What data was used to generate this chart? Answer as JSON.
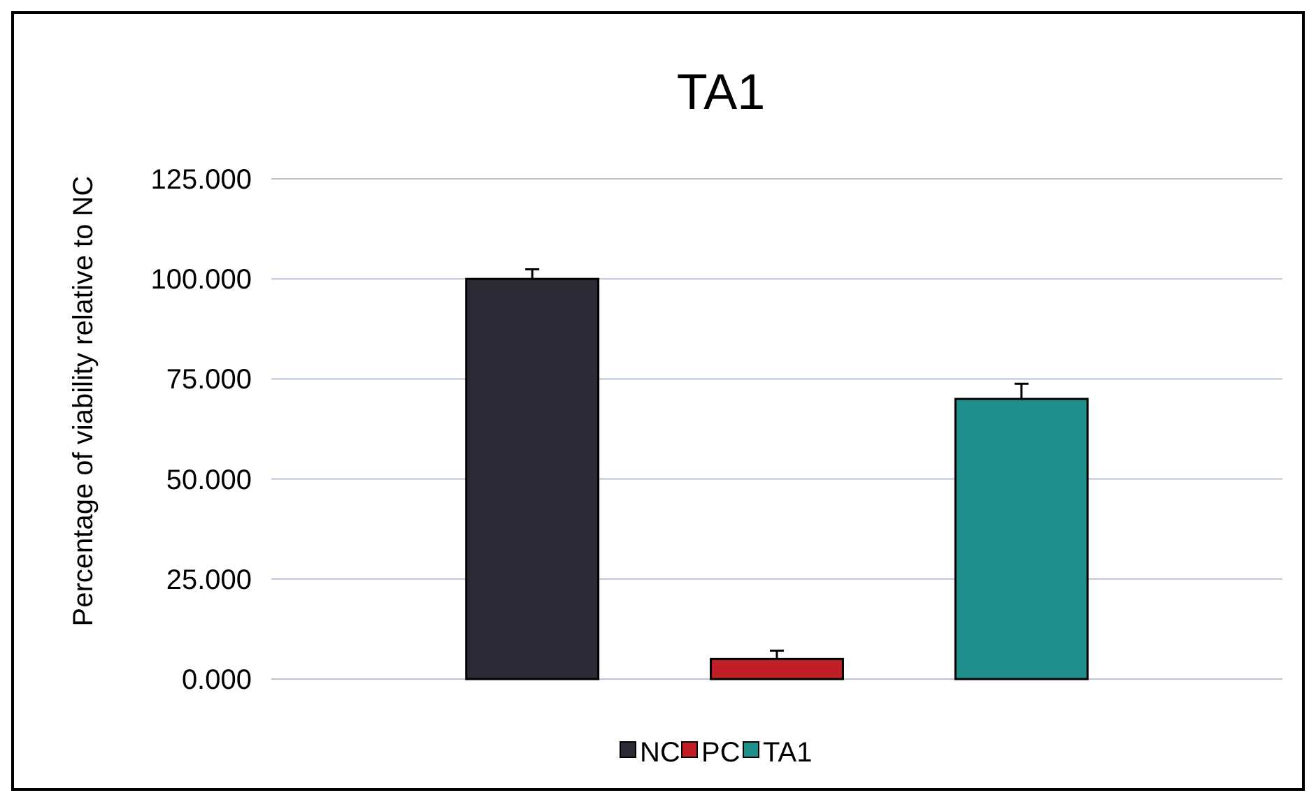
{
  "chart_data": {
    "type": "bar",
    "title": "TA1",
    "ylabel": "Percentage of viability relative to NC",
    "categories": [
      null
    ],
    "series": [
      {
        "name": "NC",
        "color": "#2b2a35",
        "values": [
          100
        ],
        "errors": [
          [
            100,
            102.4
          ]
        ]
      },
      {
        "name": "PC",
        "color": "#c01f26",
        "values": [
          5.0
        ],
        "errors": [
          [
            5.0,
            7.1
          ]
        ]
      },
      {
        "name": "TA1",
        "color": "#1f8f8c",
        "values": [
          70.0
        ],
        "errors": [
          [
            70.0,
            73.8
          ]
        ]
      }
    ],
    "ylim": [
      0,
      125
    ],
    "yticks": [
      {
        "value": 0,
        "label": "0.000"
      },
      {
        "value": 25,
        "label": "25.000"
      },
      {
        "value": 50,
        "label": "50.000"
      },
      {
        "value": 75,
        "label": "75.000"
      },
      {
        "value": 100,
        "label": "100.000"
      },
      {
        "value": 125,
        "label": "125.000"
      }
    ],
    "grid": "y",
    "legend": "bottom"
  }
}
